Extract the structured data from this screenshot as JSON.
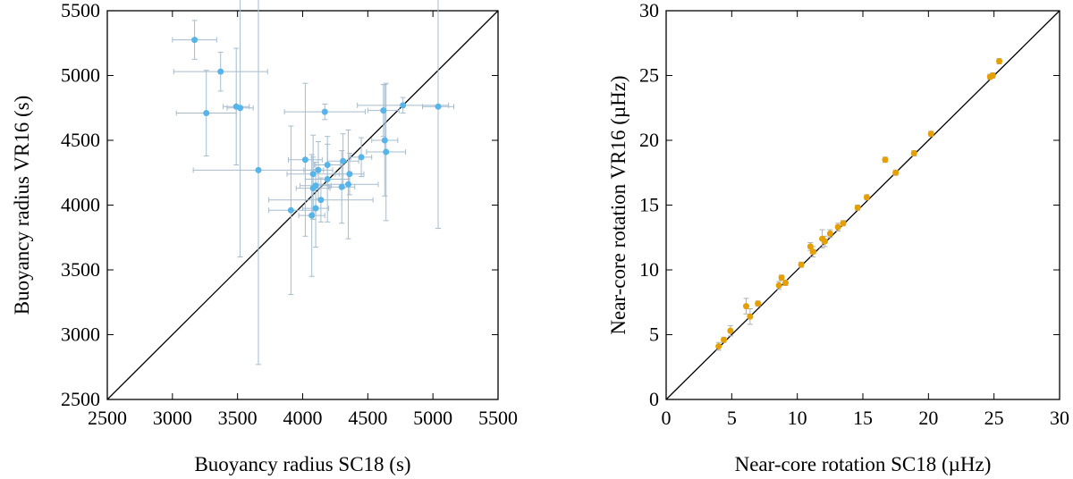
{
  "colors": {
    "left_points": "#56b4e9",
    "left_errors": "#a6bccd",
    "right_points": "#e69f00",
    "right_errors": "#b0b0b0"
  },
  "chart_data": [
    {
      "type": "scatter",
      "xlabel": "Buoyancy radius SC18 (s)",
      "ylabel": "Buoyancy radius VR16 (s)",
      "xlim": [
        2500,
        5500
      ],
      "ylim": [
        2500,
        5500
      ],
      "xticks": [
        2500,
        3000,
        3500,
        4000,
        4500,
        5000,
        5500
      ],
      "yticks": [
        2500,
        3000,
        3500,
        4000,
        4500,
        5000,
        5500
      ],
      "diagonal": true,
      "points": [
        {
          "x": 3170,
          "y": 5275,
          "xerr": 170,
          "yerr": 150
        },
        {
          "x": 3370,
          "y": 5030,
          "xerr": 360,
          "yerr": 150
        },
        {
          "x": 3260,
          "y": 4710,
          "xerr": 230,
          "yerr": 330
        },
        {
          "x": 3490,
          "y": 4760,
          "xerr": 100,
          "yerr": 450
        },
        {
          "x": 3520,
          "y": 4750,
          "xerr": 100,
          "yerr": 1150
        },
        {
          "x": 3660,
          "y": 4270,
          "xerr": 500,
          "yerr": 1500
        },
        {
          "x": 3910,
          "y": 3960,
          "xerr": 170,
          "yerr": 650
        },
        {
          "x": 4020,
          "y": 4350,
          "xerr": 130,
          "yerr": 590
        },
        {
          "x": 4070,
          "y": 3920,
          "xerr": 100,
          "yerr": 470
        },
        {
          "x": 4080,
          "y": 4130,
          "xerr": 130,
          "yerr": 240
        },
        {
          "x": 4080,
          "y": 4240,
          "xerr": 200,
          "yerr": 300
        },
        {
          "x": 4100,
          "y": 4150,
          "xerr": 120,
          "yerr": 180
        },
        {
          "x": 4100,
          "y": 3975,
          "xerr": 100,
          "yerr": 300
        },
        {
          "x": 4120,
          "y": 4270,
          "xerr": 110,
          "yerr": 220
        },
        {
          "x": 4140,
          "y": 4040,
          "xerr": 400,
          "yerr": 170
        },
        {
          "x": 4170,
          "y": 4720,
          "xerr": 310,
          "yerr": 60
        },
        {
          "x": 4190,
          "y": 4310,
          "xerr": 100,
          "yerr": 160
        },
        {
          "x": 4190,
          "y": 4200,
          "xerr": 170,
          "yerr": 330
        },
        {
          "x": 4300,
          "y": 4140,
          "xerr": 100,
          "yerr": 280
        },
        {
          "x": 4310,
          "y": 4340,
          "xerr": 120,
          "yerr": 210
        },
        {
          "x": 4350,
          "y": 4160,
          "xerr": 230,
          "yerr": 420
        },
        {
          "x": 4360,
          "y": 4240,
          "xerr": 110,
          "yerr": 160
        },
        {
          "x": 4450,
          "y": 4370,
          "xerr": 80,
          "yerr": 150
        },
        {
          "x": 4620,
          "y": 4730,
          "xerr": 120,
          "yerr": 200
        },
        {
          "x": 4630,
          "y": 4500,
          "xerr": 100,
          "yerr": 430
        },
        {
          "x": 4640,
          "y": 4410,
          "xerr": 150,
          "yerr": 530
        },
        {
          "x": 4770,
          "y": 4770,
          "xerr": 350,
          "yerr": 60
        },
        {
          "x": 5040,
          "y": 4760,
          "xerr": 120,
          "yerr": 940
        }
      ]
    },
    {
      "type": "scatter",
      "xlabel": "Near-core rotation SC18 (µHz)",
      "ylabel": "Near-core rotation VR16 (µHz)",
      "xlim": [
        0,
        30
      ],
      "ylim": [
        0,
        30
      ],
      "xticks": [
        0,
        5,
        10,
        15,
        20,
        25,
        30
      ],
      "yticks": [
        0,
        5,
        10,
        15,
        20,
        25,
        30
      ],
      "diagonal": true,
      "points": [
        {
          "x": 4.0,
          "y": 4.1,
          "xerr": 0.1,
          "yerr": 0.3
        },
        {
          "x": 4.4,
          "y": 4.6,
          "xerr": 0.1,
          "yerr": 0.2
        },
        {
          "x": 4.9,
          "y": 5.3,
          "xerr": 0.1,
          "yerr": 0.4
        },
        {
          "x": 6.1,
          "y": 7.2,
          "xerr": 0.1,
          "yerr": 0.6
        },
        {
          "x": 6.4,
          "y": 6.4,
          "xerr": 0.1,
          "yerr": 0.6
        },
        {
          "x": 7.0,
          "y": 7.4,
          "xerr": 0.1,
          "yerr": 0.2
        },
        {
          "x": 8.6,
          "y": 8.8,
          "xerr": 0.1,
          "yerr": 0.3
        },
        {
          "x": 8.8,
          "y": 9.4,
          "xerr": 0.1,
          "yerr": 0.2
        },
        {
          "x": 9.1,
          "y": 9.0,
          "xerr": 0.1,
          "yerr": 0.2
        },
        {
          "x": 10.3,
          "y": 10.4,
          "xerr": 0.1,
          "yerr": 0.2
        },
        {
          "x": 11.0,
          "y": 11.8,
          "xerr": 0.1,
          "yerr": 0.3
        },
        {
          "x": 11.2,
          "y": 11.4,
          "xerr": 0.2,
          "yerr": 0.4
        },
        {
          "x": 11.9,
          "y": 12.4,
          "xerr": 0.1,
          "yerr": 0.7
        },
        {
          "x": 12.1,
          "y": 12.2,
          "xerr": 0.1,
          "yerr": 0.4
        },
        {
          "x": 12.5,
          "y": 12.8,
          "xerr": 0.1,
          "yerr": 0.3
        },
        {
          "x": 13.1,
          "y": 13.3,
          "xerr": 0.1,
          "yerr": 0.3
        },
        {
          "x": 13.5,
          "y": 13.6,
          "xerr": 0.1,
          "yerr": 0.2
        },
        {
          "x": 14.6,
          "y": 14.8,
          "xerr": 0.1,
          "yerr": 0.2
        },
        {
          "x": 15.3,
          "y": 15.6,
          "xerr": 0.1,
          "yerr": 0.2
        },
        {
          "x": 16.7,
          "y": 18.5,
          "xerr": 0.1,
          "yerr": 0.2
        },
        {
          "x": 17.5,
          "y": 17.5,
          "xerr": 0.1,
          "yerr": 0.2
        },
        {
          "x": 18.9,
          "y": 19.0,
          "xerr": 0.1,
          "yerr": 0.2
        },
        {
          "x": 20.2,
          "y": 20.5,
          "xerr": 0.1,
          "yerr": 0.2
        },
        {
          "x": 24.7,
          "y": 24.9,
          "xerr": 0.1,
          "yerr": 0.2
        },
        {
          "x": 24.9,
          "y": 25.0,
          "xerr": 0.1,
          "yerr": 0.2
        },
        {
          "x": 25.4,
          "y": 26.1,
          "xerr": 0.1,
          "yerr": 0.2
        }
      ]
    }
  ]
}
